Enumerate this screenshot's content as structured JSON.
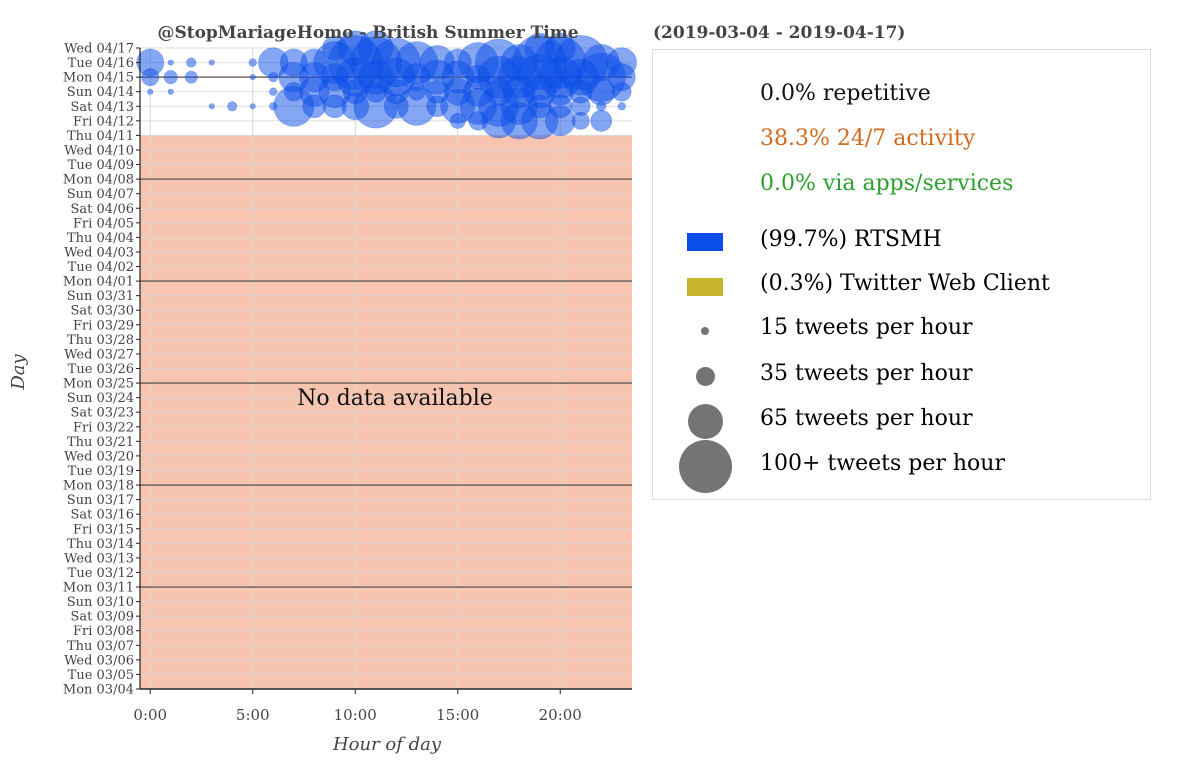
{
  "chart_data": {
    "type": "scatter",
    "title": "@StopMariageHomo - British Summer Time",
    "date_range": "(2019-03-04 - 2019-04-17)",
    "xlabel": "Hour of day",
    "ylabel": "Day",
    "xlim": [
      -0.5,
      23.5
    ],
    "x_ticks": [
      0,
      5,
      10,
      15,
      20
    ],
    "x_tick_labels": [
      "0:00",
      "5:00",
      "10:00",
      "15:00",
      "20:00"
    ],
    "days": [
      "Mon 03/04",
      "Tue 03/05",
      "Wed 03/06",
      "Thu 03/07",
      "Fri 03/08",
      "Sat 03/09",
      "Sun 03/10",
      "Mon 03/11",
      "Tue 03/12",
      "Wed 03/13",
      "Thu 03/14",
      "Fri 03/15",
      "Sat 03/16",
      "Sun 03/17",
      "Mon 03/18",
      "Tue 03/19",
      "Wed 03/20",
      "Thu 03/21",
      "Fri 03/22",
      "Sat 03/23",
      "Sun 03/24",
      "Mon 03/25",
      "Tue 03/26",
      "Wed 03/27",
      "Thu 03/28",
      "Fri 03/29",
      "Sat 03/30",
      "Sun 03/31",
      "Mon 04/01",
      "Tue 04/02",
      "Wed 04/03",
      "Thu 04/04",
      "Fri 04/05",
      "Sat 04/06",
      "Sun 04/07",
      "Mon 04/08",
      "Tue 04/09",
      "Wed 04/10",
      "Thu 04/11",
      "Fri 04/12",
      "Sat 04/13",
      "Sun 04/14",
      "Mon 04/15",
      "Tue 04/16",
      "Wed 04/17"
    ],
    "no_data_label": "No data available",
    "no_data_range": [
      "Mon 03/04",
      "Thu 04/11"
    ],
    "grid": true,
    "series": [
      {
        "name": "RTSMH",
        "color": "#0b4de8",
        "points": [
          {
            "day": "Fri 04/12",
            "hour": 15,
            "tweets": 8
          },
          {
            "day": "Fri 04/12",
            "hour": 16,
            "tweets": 12
          },
          {
            "day": "Fri 04/12",
            "hour": 17,
            "tweets": 40
          },
          {
            "day": "Fri 04/12",
            "hour": 18,
            "tweets": 45
          },
          {
            "day": "Fri 04/12",
            "hour": 19,
            "tweets": 45
          },
          {
            "day": "Fri 04/12",
            "hour": 20,
            "tweets": 30
          },
          {
            "day": "Fri 04/12",
            "hour": 21,
            "tweets": 10
          },
          {
            "day": "Fri 04/12",
            "hour": 22,
            "tweets": 15
          },
          {
            "day": "Sat 04/13",
            "hour": 3,
            "tweets": 1
          },
          {
            "day": "Sat 04/13",
            "hour": 4,
            "tweets": 3
          },
          {
            "day": "Sat 04/13",
            "hour": 5,
            "tweets": 1
          },
          {
            "day": "Sat 04/13",
            "hour": 6,
            "tweets": 2
          },
          {
            "day": "Sat 04/13",
            "hour": 7,
            "tweets": 55
          },
          {
            "day": "Sat 04/13",
            "hour": 8,
            "tweets": 18
          },
          {
            "day": "Sat 04/13",
            "hour": 9,
            "tweets": 18
          },
          {
            "day": "Sat 04/13",
            "hour": 10,
            "tweets": 25
          },
          {
            "day": "Sat 04/13",
            "hour": 11,
            "tweets": 65
          },
          {
            "day": "Sat 04/13",
            "hour": 12,
            "tweets": 20
          },
          {
            "day": "Sat 04/13",
            "hour": 13,
            "tweets": 50
          },
          {
            "day": "Sat 04/13",
            "hour": 14,
            "tweets": 15
          },
          {
            "day": "Sat 04/13",
            "hour": 15,
            "tweets": 40
          },
          {
            "day": "Sat 04/13",
            "hour": 16,
            "tweets": 45
          },
          {
            "day": "Sat 04/13",
            "hour": 17,
            "tweets": 55
          },
          {
            "day": "Sat 04/13",
            "hour": 18,
            "tweets": 45
          },
          {
            "day": "Sat 04/13",
            "hour": 19,
            "tweets": 18
          },
          {
            "day": "Sat 04/13",
            "hour": 20,
            "tweets": 18
          },
          {
            "day": "Sat 04/13",
            "hour": 21,
            "tweets": 12
          },
          {
            "day": "Sat 04/13",
            "hour": 22,
            "tweets": 3
          },
          {
            "day": "Sat 04/13",
            "hour": 23,
            "tweets": 2
          },
          {
            "day": "Sun 04/14",
            "hour": 0,
            "tweets": 1
          },
          {
            "day": "Sun 04/14",
            "hour": 1,
            "tweets": 1
          },
          {
            "day": "Sun 04/14",
            "hour": 6,
            "tweets": 2
          },
          {
            "day": "Sun 04/14",
            "hour": 7,
            "tweets": 12
          },
          {
            "day": "Sun 04/14",
            "hour": 8,
            "tweets": 30
          },
          {
            "day": "Sun 04/14",
            "hour": 9,
            "tweets": 35
          },
          {
            "day": "Sun 04/14",
            "hour": 10,
            "tweets": 20
          },
          {
            "day": "Sun 04/14",
            "hour": 11,
            "tweets": 15
          },
          {
            "day": "Sun 04/14",
            "hour": 12,
            "tweets": 20
          },
          {
            "day": "Sun 04/14",
            "hour": 13,
            "tweets": 10
          },
          {
            "day": "Sun 04/14",
            "hour": 14,
            "tweets": 18
          },
          {
            "day": "Sun 04/14",
            "hour": 15,
            "tweets": 25
          },
          {
            "day": "Sun 04/14",
            "hour": 16,
            "tweets": 30
          },
          {
            "day": "Sun 04/14",
            "hour": 17,
            "tweets": 25
          },
          {
            "day": "Sun 04/14",
            "hour": 18,
            "tweets": 35
          },
          {
            "day": "Sun 04/14",
            "hour": 19,
            "tweets": 35
          },
          {
            "day": "Sun 04/14",
            "hour": 20,
            "tweets": 25
          },
          {
            "day": "Sun 04/14",
            "hour": 21,
            "tweets": 18
          },
          {
            "day": "Sun 04/14",
            "hour": 22,
            "tweets": 25
          },
          {
            "day": "Sun 04/14",
            "hour": 23,
            "tweets": 12
          },
          {
            "day": "Mon 04/15",
            "hour": 0,
            "tweets": 10
          },
          {
            "day": "Mon 04/15",
            "hour": 1,
            "tweets": 6
          },
          {
            "day": "Mon 04/15",
            "hour": 2,
            "tweets": 5
          },
          {
            "day": "Mon 04/15",
            "hour": 5,
            "tweets": 1
          },
          {
            "day": "Mon 04/15",
            "hour": 6,
            "tweets": 3
          },
          {
            "day": "Mon 04/15",
            "hour": 7,
            "tweets": 30
          },
          {
            "day": "Mon 04/15",
            "hour": 8,
            "tweets": 30
          },
          {
            "day": "Mon 04/15",
            "hour": 9,
            "tweets": 25
          },
          {
            "day": "Mon 04/15",
            "hour": 10,
            "tweets": 50
          },
          {
            "day": "Mon 04/15",
            "hour": 11,
            "tweets": 40
          },
          {
            "day": "Mon 04/15",
            "hour": 12,
            "tweets": 50
          },
          {
            "day": "Mon 04/15",
            "hour": 13,
            "tweets": 25
          },
          {
            "day": "Mon 04/15",
            "hour": 14,
            "tweets": 40
          },
          {
            "day": "Mon 04/15",
            "hour": 15,
            "tweets": 35
          },
          {
            "day": "Mon 04/15",
            "hour": 16,
            "tweets": 20
          },
          {
            "day": "Mon 04/15",
            "hour": 17,
            "tweets": 60
          },
          {
            "day": "Mon 04/15",
            "hour": 18,
            "tweets": 60
          },
          {
            "day": "Mon 04/15",
            "hour": 19,
            "tweets": 70
          },
          {
            "day": "Mon 04/15",
            "hour": 20,
            "tweets": 60
          },
          {
            "day": "Mon 04/15",
            "hour": 21,
            "tweets": 45
          },
          {
            "day": "Mon 04/15",
            "hour": 22,
            "tweets": 80
          },
          {
            "day": "Mon 04/15",
            "hour": 23,
            "tweets": 25
          },
          {
            "day": "Tue 04/16",
            "hour": 0,
            "tweets": 25
          },
          {
            "day": "Tue 04/16",
            "hour": 1,
            "tweets": 1
          },
          {
            "day": "Tue 04/16",
            "hour": 2,
            "tweets": 3
          },
          {
            "day": "Tue 04/16",
            "hour": 3,
            "tweets": 1
          },
          {
            "day": "Tue 04/16",
            "hour": 5,
            "tweets": 2
          },
          {
            "day": "Tue 04/16",
            "hour": 6,
            "tweets": 30
          },
          {
            "day": "Tue 04/16",
            "hour": 7,
            "tweets": 25
          },
          {
            "day": "Tue 04/16",
            "hour": 8,
            "tweets": 25
          },
          {
            "day": "Tue 04/16",
            "hour": 9,
            "tweets": 60
          },
          {
            "day": "Tue 04/16",
            "hour": 10,
            "tweets": 100
          },
          {
            "day": "Tue 04/16",
            "hour": 11,
            "tweets": 90
          },
          {
            "day": "Tue 04/16",
            "hour": 12,
            "tweets": 80
          },
          {
            "day": "Tue 04/16",
            "hour": 13,
            "tweets": 60
          },
          {
            "day": "Tue 04/16",
            "hour": 14,
            "tweets": 40
          },
          {
            "day": "Tue 04/16",
            "hour": 15,
            "tweets": 25
          },
          {
            "day": "Tue 04/16",
            "hour": 16,
            "tweets": 55
          },
          {
            "day": "Tue 04/16",
            "hour": 17,
            "tweets": 75
          },
          {
            "day": "Tue 04/16",
            "hour": 18,
            "tweets": 45
          },
          {
            "day": "Tue 04/16",
            "hour": 19,
            "tweets": 100
          },
          {
            "day": "Tue 04/16",
            "hour": 20,
            "tweets": 90
          },
          {
            "day": "Tue 04/16",
            "hour": 21,
            "tweets": 100
          },
          {
            "day": "Tue 04/16",
            "hour": 22,
            "tweets": 45
          },
          {
            "day": "Tue 04/16",
            "hour": 23,
            "tweets": 30
          },
          {
            "day": "Wed 04/17",
            "hour": 9,
            "tweets": 20
          },
          {
            "day": "Wed 04/17",
            "hour": 10,
            "tweets": 40
          },
          {
            "day": "Wed 04/17",
            "hour": 11,
            "tweets": 40
          },
          {
            "day": "Wed 04/17",
            "hour": 19,
            "tweets": 30
          },
          {
            "day": "Wed 04/17",
            "hour": 20,
            "tweets": 30
          }
        ]
      },
      {
        "name": "Twitter Web Client",
        "color": "#c8b42a",
        "points": []
      }
    ],
    "legend": {
      "placement": "right",
      "stats": [
        {
          "text": "0.0% repetitive",
          "color": "#111111"
        },
        {
          "text": "38.3% 24/7 activity",
          "color": "#d2691e"
        },
        {
          "text": "0.0% via apps/services",
          "color": "#2ca02c"
        }
      ],
      "sources": [
        {
          "text": "(99.7%) RTSMH",
          "color": "#0b4de8"
        },
        {
          "text": "(0.3%) Twitter Web Client",
          "color": "#c8b42a"
        }
      ],
      "sizes": [
        {
          "text": "15 tweets per hour",
          "tweets": 15
        },
        {
          "text": "35 tweets per hour",
          "tweets": 35
        },
        {
          "text": "65 tweets per hour",
          "tweets": 65
        },
        {
          "text": "100+ tweets per hour",
          "tweets": 100
        }
      ]
    }
  }
}
